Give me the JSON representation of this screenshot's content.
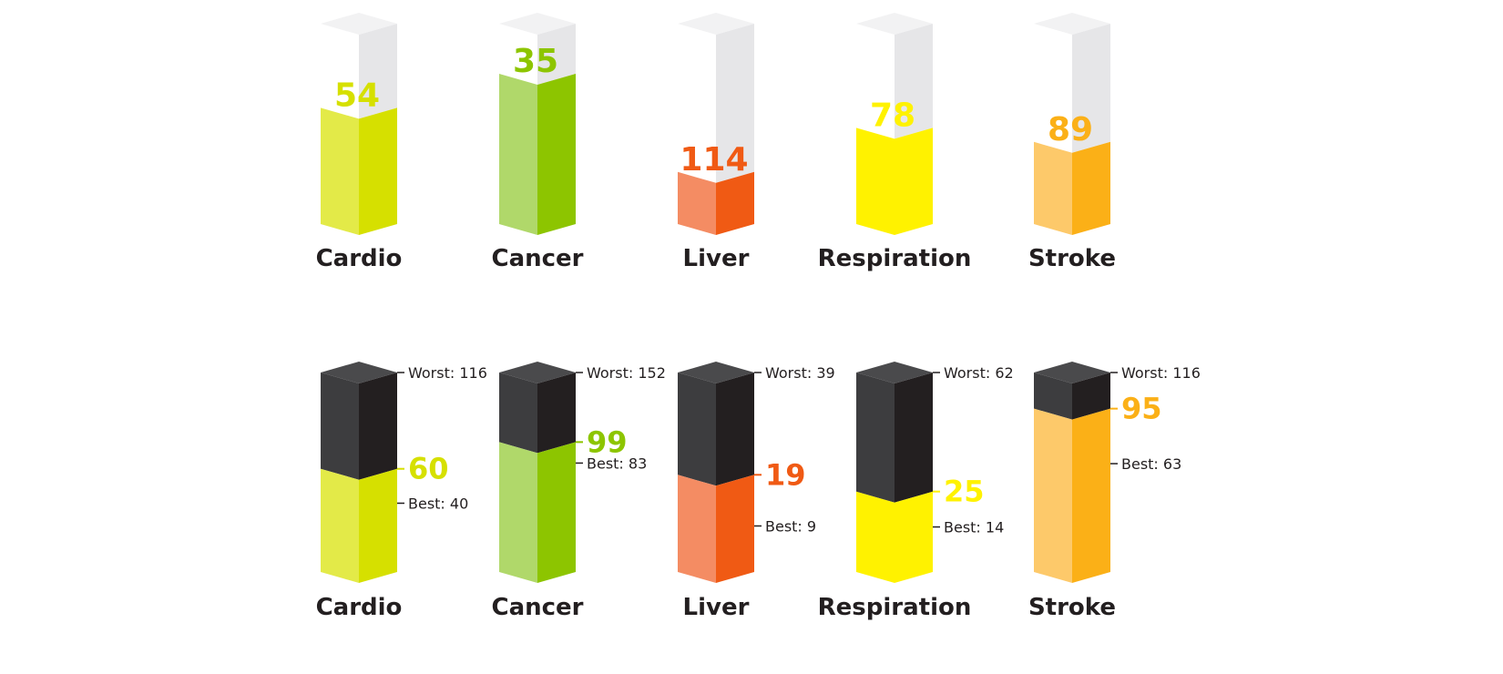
{
  "chart_data": [
    {
      "type": "bar",
      "categories": [
        "Cardio",
        "Cancer",
        "Liver",
        "Respiration",
        "Stroke"
      ],
      "values": [
        54,
        35,
        114,
        78,
        89
      ],
      "colors": [
        {
          "light": "#e3ea48",
          "dark": "#d6e000"
        },
        {
          "light": "#b0d86a",
          "dark": "#8dc500"
        },
        {
          "light": "#f48c63",
          "dark": "#f05a14"
        },
        {
          "light": "#fff200",
          "dark": "#fff200"
        },
        {
          "light": "#fdc96a",
          "dark": "#fbb017"
        }
      ],
      "value_colors": [
        "#d6e000",
        "#8dc500",
        "#f05a14",
        "#fff200",
        "#fbb017"
      ],
      "filled_fraction": [
        0.58,
        0.75,
        0.26,
        0.48,
        0.41
      ]
    },
    {
      "type": "bar",
      "categories": [
        "Cardio",
        "Cancer",
        "Liver",
        "Respiration",
        "Stroke"
      ],
      "values": [
        60,
        99,
        19,
        25,
        95
      ],
      "worst": [
        116,
        152,
        39,
        62,
        116
      ],
      "best": [
        40,
        83,
        9,
        14,
        63
      ],
      "worst_labels": [
        "Worst: 116",
        "Worst: 152",
        "Worst: 39",
        "Worst: 62",
        "Worst: 116"
      ],
      "best_labels": [
        "Best: 40",
        "Best: 83",
        "Best: 9",
        "Best: 14",
        "Best: 63"
      ],
      "colors": [
        {
          "light": "#e3ea48",
          "dark": "#d6e000"
        },
        {
          "light": "#b0d86a",
          "dark": "#8dc500"
        },
        {
          "light": "#f48c63",
          "dark": "#f05a14"
        },
        {
          "light": "#fff200",
          "dark": "#fff200"
        },
        {
          "light": "#fdc96a",
          "dark": "#fbb017"
        }
      ],
      "value_colors": [
        "#d6e000",
        "#8dc500",
        "#f05a14",
        "#fff200",
        "#fbb017"
      ],
      "dark_colors": {
        "light": "#3d3d3f",
        "dark": "#231f20"
      }
    }
  ]
}
